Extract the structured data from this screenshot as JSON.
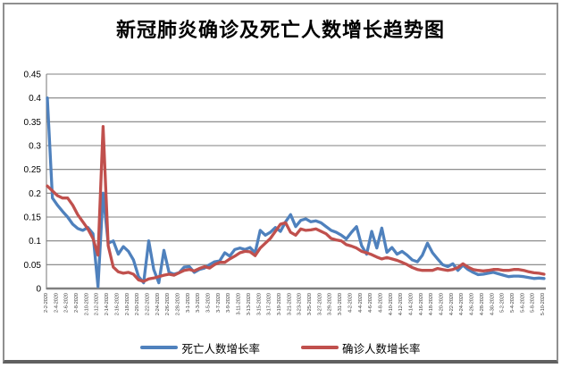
{
  "chart_data": {
    "type": "line",
    "title": "新冠肺炎确诊及死亡人数增长趋势图",
    "grid": true,
    "legend_position": "bottom",
    "ylim": [
      0,
      0.45
    ],
    "y_ticks": [
      0,
      0.05,
      0.1,
      0.15,
      0.2,
      0.25,
      0.3,
      0.35,
      0.4,
      0.45
    ],
    "x_label_interval": 2,
    "axis_color": "#808080",
    "background": "#FFFFFF",
    "categories": [
      "2-2-2020",
      "2-3-2020",
      "2-4-2020",
      "2-5-2020",
      "2-6-2020",
      "2-7-2020",
      "2-8-2020",
      "2-9-2020",
      "2-10-2020",
      "2-11-2020",
      "2-12-2020",
      "2-13-2020",
      "2-14-2020",
      "2-15-2020",
      "2-16-2020",
      "2-17-2020",
      "2-18-2020",
      "2-19-2020",
      "2-20-2020",
      "2-21-2020",
      "2-22-2020",
      "2-23-2020",
      "2-24-2020",
      "2-25-2020",
      "2-26-2020",
      "2-27-2020",
      "2-28-2020",
      "2-29-2020",
      "3-1-2020",
      "3-2-2020",
      "3-3-2020",
      "3-4-2020",
      "3-5-2020",
      "3-6-2020",
      "3-7-2020",
      "3-8-2020",
      "3-9-2020",
      "3-10-2020",
      "3-11-2020",
      "3-12-2020",
      "3-13-2020",
      "3-14-2020",
      "3-15-2020",
      "3-16-2020",
      "3-17-2020",
      "3-18-2020",
      "3-19-2020",
      "3-20-2020",
      "3-21-2020",
      "3-22-2020",
      "3-23-2020",
      "3-24-2020",
      "3-25-2020",
      "3-26-2020",
      "3-27-2020",
      "3-28-2020",
      "3-29-2020",
      "3-30-2020",
      "3-31-2020",
      "4-1-2020",
      "4-2-2020",
      "4-3-2020",
      "4-4-2020",
      "4-5-2020",
      "4-6-2020",
      "4-7-2020",
      "4-8-2020",
      "4-9-2020",
      "4-10-2020",
      "4-11-2020",
      "4-12-2020",
      "4-13-2020",
      "4-14-2020",
      "4-15-2020",
      "4-16-2020",
      "4-17-2020",
      "4-18-2020",
      "4-19-2020",
      "4-20-2020",
      "4-21-2020",
      "4-22-2020",
      "4-23-2020",
      "4-24-2020",
      "4-25-2020",
      "4-26-2020",
      "4-27-2020",
      "4-28-2020",
      "4-29-2020",
      "4-30-2020",
      "5-1-2020",
      "5-2-2020",
      "5-3-2020",
      "5-4-2020",
      "5-5-2020",
      "5-6-2020",
      "5-7-2020",
      "5-8-2020",
      "5-9-2020",
      "5-10-2020"
    ],
    "series": [
      {
        "name": "死亡人数增长率",
        "color": "#4F81BD",
        "values": [
          0.4,
          0.19,
          0.175,
          0.162,
          0.15,
          0.135,
          0.126,
          0.122,
          0.128,
          0.115,
          0.004,
          0.2,
          0.095,
          0.1,
          0.072,
          0.088,
          0.078,
          0.06,
          0.025,
          0.012,
          0.1,
          0.04,
          0.012,
          0.08,
          0.034,
          0.03,
          0.033,
          0.045,
          0.046,
          0.034,
          0.04,
          0.043,
          0.05,
          0.056,
          0.058,
          0.075,
          0.068,
          0.082,
          0.085,
          0.082,
          0.086,
          0.075,
          0.122,
          0.112,
          0.118,
          0.128,
          0.12,
          0.14,
          0.155,
          0.13,
          0.143,
          0.146,
          0.14,
          0.142,
          0.138,
          0.13,
          0.122,
          0.118,
          0.112,
          0.104,
          0.118,
          0.13,
          0.09,
          0.072,
          0.12,
          0.085,
          0.127,
          0.076,
          0.086,
          0.072,
          0.078,
          0.07,
          0.06,
          0.056,
          0.07,
          0.095,
          0.075,
          0.062,
          0.05,
          0.046,
          0.052,
          0.038,
          0.049,
          0.04,
          0.034,
          0.029,
          0.03,
          0.032,
          0.034,
          0.031,
          0.028,
          0.025,
          0.026,
          0.026,
          0.025,
          0.023,
          0.021,
          0.022,
          0.021
        ]
      },
      {
        "name": "确诊人数增长率",
        "color": "#C0504D",
        "values": [
          0.215,
          0.205,
          0.195,
          0.19,
          0.19,
          0.175,
          0.155,
          0.14,
          0.125,
          0.105,
          0.07,
          0.34,
          0.09,
          0.045,
          0.035,
          0.032,
          0.034,
          0.03,
          0.018,
          0.015,
          0.02,
          0.022,
          0.025,
          0.028,
          0.03,
          0.028,
          0.033,
          0.038,
          0.04,
          0.037,
          0.042,
          0.046,
          0.043,
          0.05,
          0.055,
          0.055,
          0.062,
          0.068,
          0.075,
          0.078,
          0.077,
          0.069,
          0.085,
          0.095,
          0.105,
          0.12,
          0.135,
          0.138,
          0.118,
          0.112,
          0.125,
          0.122,
          0.123,
          0.125,
          0.12,
          0.115,
          0.105,
          0.102,
          0.1,
          0.092,
          0.089,
          0.085,
          0.078,
          0.075,
          0.071,
          0.066,
          0.062,
          0.065,
          0.062,
          0.059,
          0.055,
          0.05,
          0.044,
          0.04,
          0.038,
          0.038,
          0.038,
          0.042,
          0.04,
          0.038,
          0.04,
          0.044,
          0.052,
          0.045,
          0.04,
          0.038,
          0.037,
          0.038,
          0.04,
          0.04,
          0.038,
          0.038,
          0.04,
          0.04,
          0.038,
          0.035,
          0.033,
          0.032,
          0.03
        ]
      }
    ]
  }
}
